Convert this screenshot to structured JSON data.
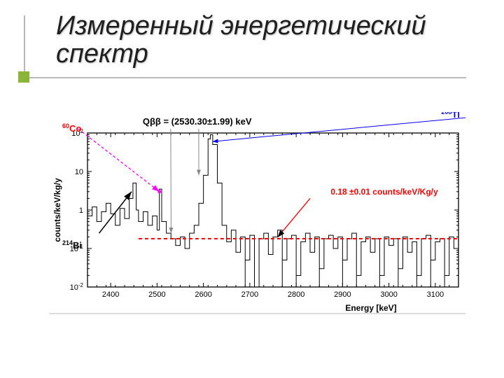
{
  "title_line1": "Измеренный энергетический",
  "title_line2": "спектр",
  "labels": {
    "co60": "60Co",
    "bi214": "214Bi",
    "tl208": "208Tl",
    "qbb": "Qββ = (2530.30±1.99) keV",
    "rate": "0.18 ±0.01 counts/keV/Kg/y",
    "xlabel": "Energy [keV]",
    "ylabel": "counts/keV/kg/y"
  },
  "colors": {
    "co60": "#ff0000",
    "bi214": "#000000",
    "tl208": "#0000ff",
    "qbb": "#000000",
    "rate": "#ff0000",
    "spectrum": "#000000",
    "redline": "#ff0000",
    "magenta": "#ff00ff",
    "blue": "#0000ff",
    "gray": "#888888",
    "bg": "#ffffff",
    "accent": "#8ab538"
  },
  "chart": {
    "type": "line-spectrum",
    "xlim": [
      2350,
      3150
    ],
    "ylim_exp": [
      -2,
      2
    ],
    "xtick_step": 100,
    "bg": "#ffffff",
    "redline_y": 0.18,
    "qbb_x": 2530.3,
    "tl208_x": 2615,
    "co60_x": 2505,
    "data": [
      [
        2350,
        0.7
      ],
      [
        2360,
        1.2
      ],
      [
        2370,
        0.5
      ],
      [
        2380,
        0.9
      ],
      [
        2390,
        1.5
      ],
      [
        2400,
        0.8
      ],
      [
        2410,
        0.4
      ],
      [
        2420,
        1.1
      ],
      [
        2430,
        0.6
      ],
      [
        2440,
        2.0
      ],
      [
        2448,
        5
      ],
      [
        2455,
        1.0
      ],
      [
        2460,
        0.5
      ],
      [
        2470,
        0.9
      ],
      [
        2480,
        0.4
      ],
      [
        2490,
        0.7
      ],
      [
        2500,
        0.3
      ],
      [
        2505,
        3.5
      ],
      [
        2510,
        0.5
      ],
      [
        2520,
        0.25
      ],
      [
        2530,
        0.18
      ],
      [
        2540,
        0.12
      ],
      [
        2550,
        0.2
      ],
      [
        2560,
        0.1
      ],
      [
        2570,
        0.25
      ],
      [
        2580,
        0.4
      ],
      [
        2590,
        1.5
      ],
      [
        2600,
        8
      ],
      [
        2610,
        70
      ],
      [
        2615,
        90
      ],
      [
        2620,
        50
      ],
      [
        2630,
        5
      ],
      [
        2640,
        0.4
      ],
      [
        2650,
        0.15
      ],
      [
        2660,
        0.3
      ],
      [
        2670,
        0.08
      ],
      [
        2680,
        0.2
      ],
      [
        2690,
        0.05
      ],
      [
        2700,
        0.22
      ],
      [
        2710,
        0.01
      ],
      [
        2720,
        0.18
      ],
      [
        2730,
        0.25
      ],
      [
        2740,
        0.07
      ],
      [
        2750,
        0.2
      ],
      [
        2760,
        0.3
      ],
      [
        2770,
        0.05
      ],
      [
        2780,
        0.18
      ],
      [
        2790,
        0.22
      ],
      [
        2800,
        0.02
      ],
      [
        2810,
        0.15
      ],
      [
        2820,
        0.25
      ],
      [
        2830,
        0.08
      ],
      [
        2840,
        0.2
      ],
      [
        2850,
        0.03
      ],
      [
        2860,
        0.18
      ],
      [
        2870,
        0.22
      ],
      [
        2880,
        0.1
      ],
      [
        2890,
        0.2
      ],
      [
        2900,
        0.05
      ],
      [
        2910,
        0.18
      ],
      [
        2920,
        0.25
      ],
      [
        2930,
        0.02
      ],
      [
        2940,
        0.15
      ],
      [
        2950,
        0.2
      ],
      [
        2960,
        0.08
      ],
      [
        2970,
        0.18
      ],
      [
        2980,
        0.02
      ],
      [
        2990,
        0.2
      ],
      [
        3000,
        0.12
      ],
      [
        3010,
        0.18
      ],
      [
        3020,
        0.03
      ],
      [
        3030,
        0.2
      ],
      [
        3040,
        0.08
      ],
      [
        3050,
        0.15
      ],
      [
        3060,
        0.02
      ],
      [
        3070,
        0.18
      ],
      [
        3080,
        0.22
      ],
      [
        3090,
        0.05
      ],
      [
        3100,
        0.15
      ],
      [
        3110,
        0.18
      ],
      [
        3120,
        0.02
      ],
      [
        3130,
        0.2
      ],
      [
        3140,
        0.1
      ],
      [
        3150,
        0.15
      ]
    ]
  }
}
